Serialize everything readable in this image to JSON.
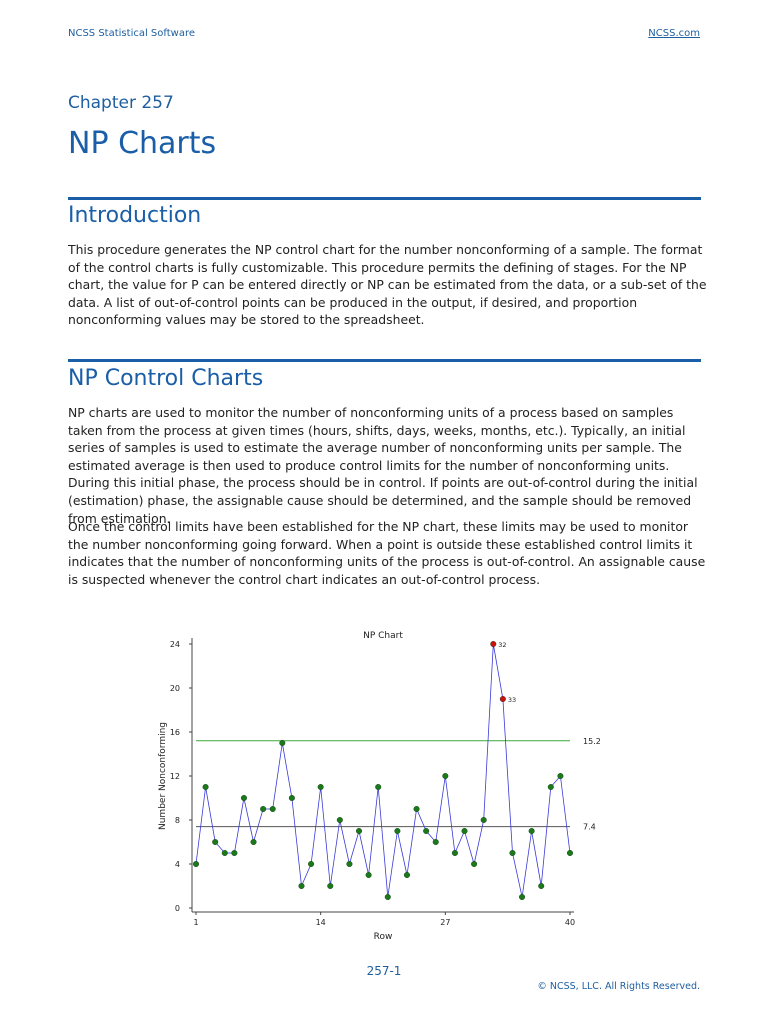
{
  "header": {
    "left": "NCSS Statistical Software",
    "right": "NCSS.com"
  },
  "chapter": "Chapter 257",
  "title": "NP Charts",
  "sections": [
    {
      "heading": "Introduction",
      "paragraphs": [
        "This procedure generates the NP control chart for the number nonconforming of a sample. The format of the control charts is fully customizable. This procedure permits the defining of stages. For the NP chart, the value for P can be entered directly or NP can be estimated from the data, or a sub-set of the data. A list of out-of-control points can be produced in the output, if desired, and proportion nonconforming values may be stored to the spreadsheet."
      ]
    },
    {
      "heading": "NP Control Charts",
      "paragraphs": [
        "NP charts are used to monitor the number of nonconforming units of a process based on samples taken from the process at given times (hours, shifts, days, weeks, months, etc.). Typically, an initial series of samples is used to estimate the average number of nonconforming units per sample. The estimated average is then used to produce control limits for the number of nonconforming units. During this initial phase, the process should be in control. If points are out-of-control during the initial (estimation) phase, the assignable cause should be determined, and the sample should be removed from estimation.",
        "Once the control limits have been established for the NP chart, these limits may be used to monitor the number nonconforming going forward. When a point is outside these established control limits it indicates that the number of nonconforming units of the process is out-of-control. An assignable cause is suspected whenever the control chart indicates an out-of-control process."
      ]
    }
  ],
  "chart_data": {
    "type": "line",
    "title": "NP Chart",
    "xlabel": "Row",
    "ylabel": "Number Nonconforming",
    "x": [
      1,
      2,
      3,
      4,
      5,
      6,
      7,
      8,
      9,
      10,
      11,
      12,
      13,
      14,
      15,
      16,
      17,
      18,
      19,
      20,
      21,
      22,
      23,
      24,
      25,
      26,
      27,
      28,
      29,
      30,
      31,
      32,
      33,
      34,
      35,
      36,
      37,
      38,
      39,
      40
    ],
    "values": [
      4,
      11,
      6,
      5,
      5,
      10,
      6,
      9,
      9,
      15,
      10,
      2,
      4,
      11,
      2,
      8,
      4,
      7,
      3,
      11,
      1,
      7,
      3,
      9,
      7,
      6,
      12,
      5,
      7,
      4,
      8,
      24,
      19,
      5,
      1,
      7,
      2,
      11,
      12,
      5
    ],
    "out_of_control": [
      32,
      33
    ],
    "point_labels": [
      {
        "x": 32,
        "label": "32"
      },
      {
        "x": 33,
        "label": "33"
      }
    ],
    "ucl": 15.2,
    "center": 7.4,
    "ucl_label": "15.2",
    "center_label": "7.4",
    "xlim": [
      1,
      40
    ],
    "ylim": [
      0,
      24
    ],
    "xticks": [
      1,
      14,
      27,
      40
    ],
    "yticks": [
      0,
      4,
      8,
      12,
      16,
      20,
      24
    ],
    "colors": {
      "line": "#3a3ad8",
      "point": "#1a7a1a",
      "out_point": "#cc1111",
      "ucl": "#3aa83a",
      "center": "#555555"
    },
    "grid": false
  },
  "footer": {
    "page": "257-1",
    "copyright": "© NCSS, LLC. All Rights Reserved."
  }
}
